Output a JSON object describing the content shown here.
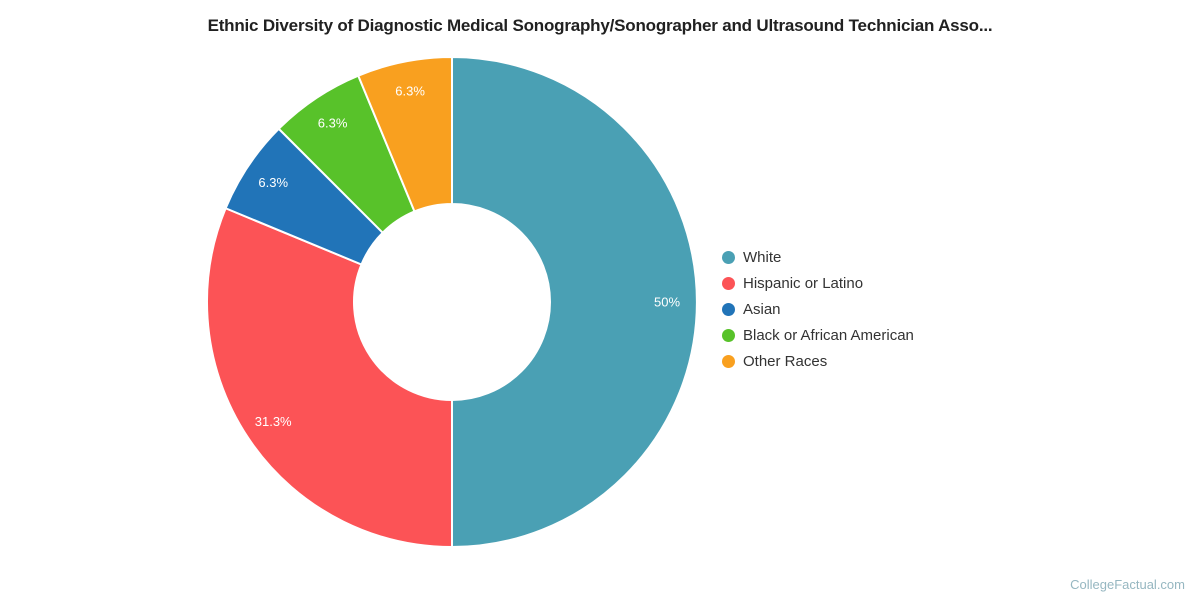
{
  "page": {
    "background": "#ffffff",
    "watermark": "CollegeFactual.com",
    "watermark_color": "#96b7c1"
  },
  "chart_data": {
    "type": "pie",
    "subtype": "donut",
    "title": "Ethnic Diversity of Diagnostic Medical Sonography/Sonographer and Ultrasound Technician Asso...",
    "categories": [
      "White",
      "Hispanic or Latino",
      "Asian",
      "Black or African American",
      "Other Races"
    ],
    "values": [
      50,
      31.25,
      6.25,
      6.25,
      6.25
    ],
    "labels": [
      "50%",
      "31.3%",
      "6.3%",
      "6.3%",
      "6.3%"
    ],
    "colors": [
      "#4aa0b4",
      "#fc5356",
      "#2174b8",
      "#58c22a",
      "#f9a01f"
    ],
    "label_color": "#ffffff",
    "slice_border_color": "#ffffff",
    "legend_position": "right",
    "start_angle_deg": 0,
    "direction": "clockwise"
  }
}
